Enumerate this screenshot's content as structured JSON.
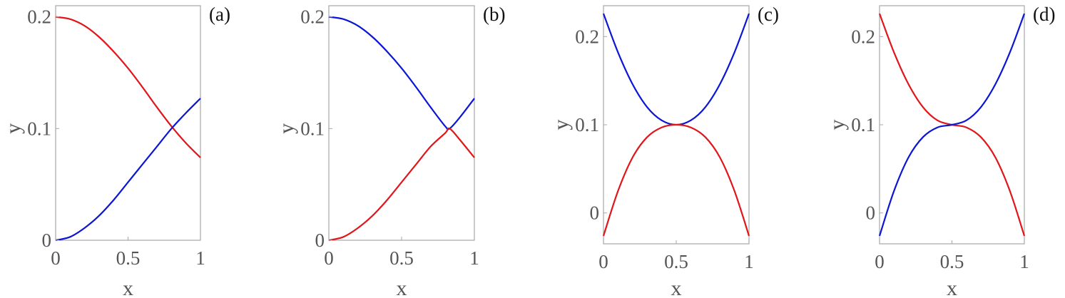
{
  "chart_data": [
    {
      "type": "line",
      "panel_label": "(a)",
      "xlabel": "x",
      "ylabel": "y",
      "xlim": [
        0,
        1
      ],
      "ylim": [
        0,
        0.21
      ],
      "xticks": [
        0,
        0.5,
        1
      ],
      "xtick_labels": [
        "0",
        "0.5",
        "1"
      ],
      "yticks": [
        0,
        0.1,
        0.2
      ],
      "ytick_labels": [
        "0",
        "0.1",
        "0.2"
      ],
      "grid": false,
      "series": [
        {
          "color": "#e0161b",
          "x": [
            0,
            0.1,
            0.2,
            0.3,
            0.4,
            0.5,
            0.6,
            0.7,
            0.8,
            0.9,
            1.0
          ],
          "y": [
            0.2,
            0.198,
            0.192,
            0.182,
            0.169,
            0.154,
            0.137,
            0.119,
            0.102,
            0.087,
            0.074
          ]
        },
        {
          "color": "#0b16d4",
          "x": [
            0,
            0.1,
            0.2,
            0.3,
            0.4,
            0.5,
            0.6,
            0.7,
            0.8,
            0.9,
            1.0
          ],
          "y": [
            0.0,
            0.003,
            0.011,
            0.022,
            0.036,
            0.052,
            0.068,
            0.084,
            0.1,
            0.114,
            0.127
          ]
        }
      ]
    },
    {
      "type": "line",
      "panel_label": "(b)",
      "xlabel": "x",
      "ylabel": "y",
      "xlim": [
        0,
        1
      ],
      "ylim": [
        0,
        0.21
      ],
      "xticks": [
        0,
        0.5,
        1
      ],
      "xtick_labels": [
        "0",
        "0.5",
        "1"
      ],
      "yticks": [
        0,
        0.1,
        0.2
      ],
      "ytick_labels": [
        "0",
        "0.1",
        "0.2"
      ],
      "grid": false,
      "series": [
        {
          "color": "#0b16d4",
          "x": [
            0,
            0.1,
            0.2,
            0.3,
            0.4,
            0.5,
            0.6,
            0.7,
            0.8,
            0.83,
            0.9,
            1.0
          ],
          "y": [
            0.2,
            0.198,
            0.192,
            0.182,
            0.169,
            0.154,
            0.137,
            0.119,
            0.102,
            0.1,
            0.11,
            0.127
          ]
        },
        {
          "color": "#e0161b",
          "x": [
            0,
            0.1,
            0.2,
            0.3,
            0.4,
            0.5,
            0.6,
            0.7,
            0.8,
            0.83,
            0.9,
            1.0
          ],
          "y": [
            0.0,
            0.003,
            0.011,
            0.022,
            0.036,
            0.052,
            0.068,
            0.084,
            0.096,
            0.1,
            0.09,
            0.074
          ]
        }
      ]
    },
    {
      "type": "line",
      "panel_label": "(c)",
      "xlabel": "x",
      "ylabel": "y",
      "xlim": [
        0,
        1
      ],
      "ylim": [
        -0.035,
        0.235
      ],
      "xticks": [
        0,
        0.5,
        1
      ],
      "xtick_labels": [
        "0",
        "0.5",
        "1"
      ],
      "yticks": [
        0,
        0.1,
        0.2
      ],
      "ytick_labels": [
        "0",
        "0.1",
        "0.2"
      ],
      "grid": false,
      "series": [
        {
          "color": "#0b16d4",
          "x": [
            0,
            0.1,
            0.2,
            0.3,
            0.4,
            0.5,
            0.6,
            0.7,
            0.8,
            0.9,
            1.0
          ],
          "y": [
            0.226,
            0.182,
            0.146,
            0.12,
            0.105,
            0.1,
            0.105,
            0.12,
            0.146,
            0.182,
            0.226
          ]
        },
        {
          "color": "#e0161b",
          "x": [
            0,
            0.1,
            0.2,
            0.3,
            0.4,
            0.5,
            0.6,
            0.7,
            0.8,
            0.9,
            1.0
          ],
          "y": [
            -0.026,
            0.025,
            0.063,
            0.086,
            0.097,
            0.1,
            0.097,
            0.086,
            0.063,
            0.025,
            -0.026
          ]
        }
      ]
    },
    {
      "type": "line",
      "panel_label": "(d)",
      "xlabel": "x",
      "ylabel": "y",
      "xlim": [
        0,
        1
      ],
      "ylim": [
        -0.035,
        0.235
      ],
      "xticks": [
        0,
        0.5,
        1
      ],
      "xtick_labels": [
        "0",
        "0.5",
        "1"
      ],
      "yticks": [
        0,
        0.1,
        0.2
      ],
      "ytick_labels": [
        "0",
        "0.1",
        "0.2"
      ],
      "grid": false,
      "series": [
        {
          "color": "#e0161b",
          "x": [
            0,
            0.1,
            0.2,
            0.3,
            0.4,
            0.5,
            0.6,
            0.7,
            0.8,
            0.9,
            1.0
          ],
          "y": [
            0.226,
            0.182,
            0.146,
            0.12,
            0.105,
            0.1,
            0.097,
            0.086,
            0.063,
            0.025,
            -0.026
          ]
        },
        {
          "color": "#0b16d4",
          "x": [
            0,
            0.1,
            0.2,
            0.3,
            0.4,
            0.5,
            0.6,
            0.7,
            0.8,
            0.9,
            1.0
          ],
          "y": [
            -0.026,
            0.025,
            0.063,
            0.086,
            0.097,
            0.1,
            0.105,
            0.12,
            0.146,
            0.182,
            0.226
          ]
        }
      ]
    }
  ]
}
